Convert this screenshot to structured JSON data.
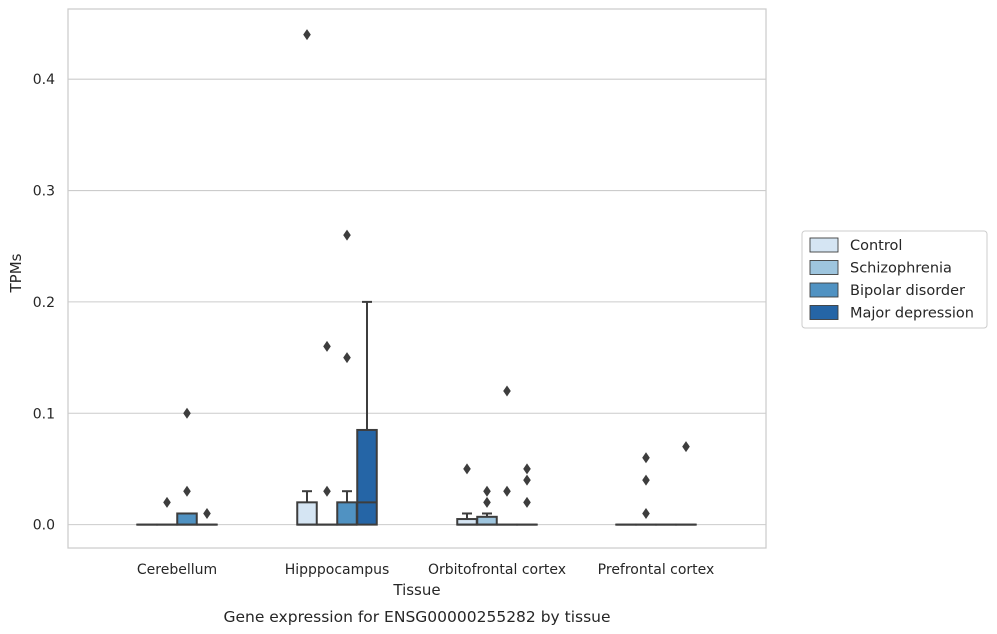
{
  "caption": "Gene expression for ENSG00000255282 by tissue",
  "colors": {
    "Control": "#d5e5f3",
    "Schizophrenia": "#9ec5de",
    "Bipolar disorder": "#5092c2",
    "Major depression": "#2565a6",
    "outline": "#3d3d3d",
    "grid": "#cccccc"
  },
  "chart_data": {
    "type": "box",
    "title": "",
    "xlabel": "Tissue",
    "ylabel": "TPMs",
    "categories": [
      "Cerebellum",
      "Hipppocampus",
      "Orbitofrontal cortex",
      "Prefrontal cortex"
    ],
    "ylim": [
      -0.021,
      0.463
    ],
    "yticks": [
      0.0,
      0.1,
      0.2,
      0.3,
      0.4
    ],
    "ytick_labels": [
      "0.0",
      "0.1",
      "0.2",
      "0.3",
      "0.4"
    ],
    "grid": "horizontal",
    "legend_position": "right",
    "series": [
      {
        "name": "Control",
        "boxes": [
          {
            "q1": 0,
            "median": 0,
            "q3": 0,
            "whisker_low": 0,
            "whisker_high": 0,
            "outliers": []
          },
          {
            "q1": 0,
            "median": 0,
            "q3": 0.02,
            "whisker_low": 0,
            "whisker_high": 0.03,
            "outliers": [
              0.44
            ]
          },
          {
            "q1": 0,
            "median": 0,
            "q3": 0.005,
            "whisker_low": 0,
            "whisker_high": 0.01,
            "outliers": [
              0.05
            ]
          },
          {
            "q1": 0,
            "median": 0,
            "q3": 0,
            "whisker_low": 0,
            "whisker_high": 0,
            "outliers": []
          }
        ]
      },
      {
        "name": "Schizophrenia",
        "boxes": [
          {
            "q1": 0,
            "median": 0,
            "q3": 0,
            "whisker_low": 0,
            "whisker_high": 0,
            "outliers": [
              0.02
            ]
          },
          {
            "q1": 0,
            "median": 0,
            "q3": 0,
            "whisker_low": 0,
            "whisker_high": 0,
            "outliers": [
              0.03,
              0.16
            ]
          },
          {
            "q1": 0,
            "median": 0,
            "q3": 0.007,
            "whisker_low": 0,
            "whisker_high": 0.01,
            "outliers": [
              0.02,
              0.03
            ]
          },
          {
            "q1": 0,
            "median": 0,
            "q3": 0,
            "whisker_low": 0,
            "whisker_high": 0,
            "outliers": [
              0.01,
              0.04,
              0.06
            ]
          }
        ]
      },
      {
        "name": "Bipolar disorder",
        "boxes": [
          {
            "q1": 0,
            "median": 0,
            "q3": 0.01,
            "whisker_low": 0,
            "whisker_high": 0.01,
            "outliers": [
              0.03,
              0.1
            ]
          },
          {
            "q1": 0,
            "median": 0,
            "q3": 0.02,
            "whisker_low": 0,
            "whisker_high": 0.03,
            "outliers": [
              0.15,
              0.26
            ]
          },
          {
            "q1": 0,
            "median": 0,
            "q3": 0,
            "whisker_low": 0,
            "whisker_high": 0,
            "outliers": [
              0.03,
              0.12
            ]
          },
          {
            "q1": 0,
            "median": 0,
            "q3": 0,
            "whisker_low": 0,
            "whisker_high": 0,
            "outliers": []
          }
        ]
      },
      {
        "name": "Major depression",
        "boxes": [
          {
            "q1": 0,
            "median": 0,
            "q3": 0,
            "whisker_low": 0,
            "whisker_high": 0,
            "outliers": [
              0.01
            ]
          },
          {
            "q1": 0,
            "median": 0.02,
            "q3": 0.085,
            "whisker_low": 0,
            "whisker_high": 0.2,
            "outliers": []
          },
          {
            "q1": 0,
            "median": 0,
            "q3": 0,
            "whisker_low": 0,
            "whisker_high": 0,
            "outliers": [
              0.02,
              0.04,
              0.05
            ]
          },
          {
            "q1": 0,
            "median": 0,
            "q3": 0,
            "whisker_low": 0,
            "whisker_high": 0,
            "outliers": [
              0.07
            ]
          }
        ]
      }
    ]
  }
}
